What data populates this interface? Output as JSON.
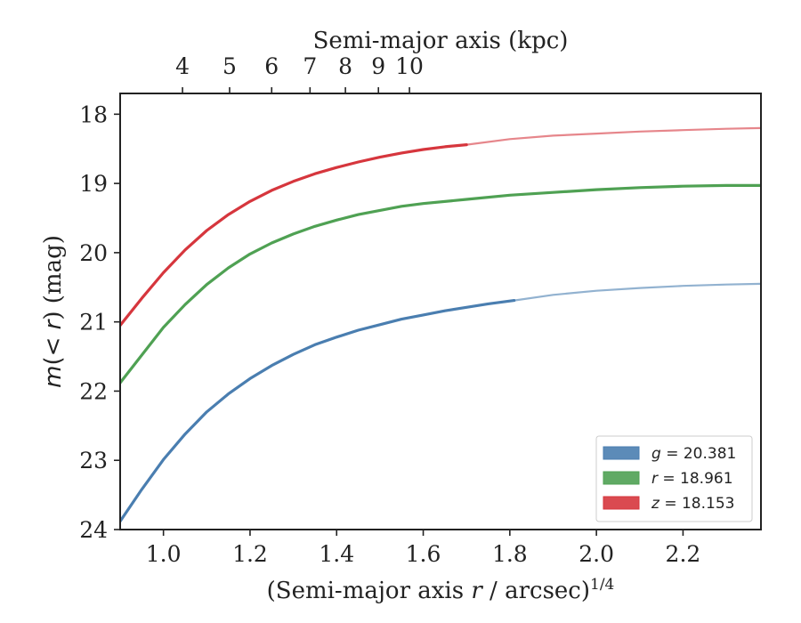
{
  "chart_data": {
    "type": "line",
    "xlabel": "(Semi-major axis r / arcsec)^{1/4}",
    "xlabel_parts": [
      "(Semi-major axis ",
      "r",
      " / arcsec)",
      "1/4"
    ],
    "top_xlabel": "Semi-major axis (kpc)",
    "ylabel": "m(< r) (mag)",
    "ylabel_parts": [
      "m",
      "(< ",
      "r",
      ") (mag)"
    ],
    "xlim": [
      0.9,
      2.38
    ],
    "ylim": [
      24,
      17.7
    ],
    "y_inverted": true,
    "x_ticks": [
      1.0,
      1.2,
      1.4,
      1.6,
      1.8,
      2.0,
      2.2
    ],
    "x_tick_labels": [
      "1.0",
      "1.2",
      "1.4",
      "1.6",
      "1.8",
      "2.0",
      "2.2"
    ],
    "y_ticks": [
      18,
      19,
      20,
      21,
      22,
      23,
      24
    ],
    "y_tick_labels": [
      "18",
      "19",
      "20",
      "21",
      "22",
      "23",
      "24"
    ],
    "top_x_ticks_kpc": [
      4,
      5,
      6,
      7,
      8,
      9,
      10
    ],
    "top_x_tick_labels": [
      "4",
      "5",
      "6",
      "7",
      "8",
      "9",
      "10"
    ],
    "top_axis_kpc_per_unit_scale": [
      3.63,
      0.444
    ],
    "legend_position": "lower-right",
    "legend": [
      {
        "label_var": "g",
        "label_value": "= 20.381",
        "color": "#4a7eb0"
      },
      {
        "label_var": "r",
        "label_value": "= 18.961",
        "color": "#4fa153"
      },
      {
        "label_var": "z",
        "label_value": "= 18.153",
        "color": "#d6363d"
      }
    ],
    "series": [
      {
        "name": "g",
        "color": "#4a7eb0",
        "x": [
          0.9,
          0.95,
          1.0,
          1.05,
          1.1,
          1.15,
          1.2,
          1.25,
          1.3,
          1.35,
          1.4,
          1.45,
          1.5,
          1.55,
          1.6,
          1.65,
          1.7,
          1.75,
          1.81
        ],
        "y": [
          23.88,
          23.42,
          22.99,
          22.62,
          22.3,
          22.04,
          21.82,
          21.63,
          21.47,
          21.33,
          21.22,
          21.12,
          21.04,
          20.96,
          20.9,
          20.84,
          20.79,
          20.74,
          20.69
        ]
      },
      {
        "name": "g (extrapolated)",
        "color": "#4a7eb0",
        "faded": true,
        "x": [
          1.81,
          1.9,
          2.0,
          2.1,
          2.2,
          2.3,
          2.38
        ],
        "y": [
          20.69,
          20.61,
          20.55,
          20.51,
          20.48,
          20.46,
          20.45
        ]
      },
      {
        "name": "r",
        "color": "#4fa153",
        "x": [
          0.9,
          0.95,
          1.0,
          1.05,
          1.1,
          1.15,
          1.2,
          1.25,
          1.3,
          1.35,
          1.4,
          1.45,
          1.5,
          1.55,
          1.6,
          1.7,
          1.8,
          1.9,
          2.0,
          2.1,
          2.2,
          2.3,
          2.38
        ],
        "y": [
          21.88,
          21.48,
          21.08,
          20.75,
          20.46,
          20.22,
          20.02,
          19.86,
          19.73,
          19.62,
          19.53,
          19.45,
          19.39,
          19.33,
          19.29,
          19.23,
          19.17,
          19.13,
          19.09,
          19.06,
          19.04,
          19.03,
          19.03
        ]
      },
      {
        "name": "z",
        "color": "#d6363d",
        "x": [
          0.9,
          0.95,
          1.0,
          1.05,
          1.1,
          1.15,
          1.2,
          1.25,
          1.3,
          1.35,
          1.4,
          1.45,
          1.5,
          1.55,
          1.6,
          1.65,
          1.7
        ],
        "y": [
          21.05,
          20.66,
          20.29,
          19.96,
          19.68,
          19.45,
          19.26,
          19.1,
          18.97,
          18.86,
          18.77,
          18.69,
          18.62,
          18.56,
          18.51,
          18.47,
          18.44
        ]
      },
      {
        "name": "z (extrapolated)",
        "color": "#d6363d",
        "faded": true,
        "x": [
          1.7,
          1.8,
          1.9,
          2.0,
          2.1,
          2.2,
          2.3,
          2.38
        ],
        "y": [
          18.44,
          18.36,
          18.31,
          18.28,
          18.25,
          18.23,
          18.21,
          18.2
        ]
      }
    ]
  }
}
